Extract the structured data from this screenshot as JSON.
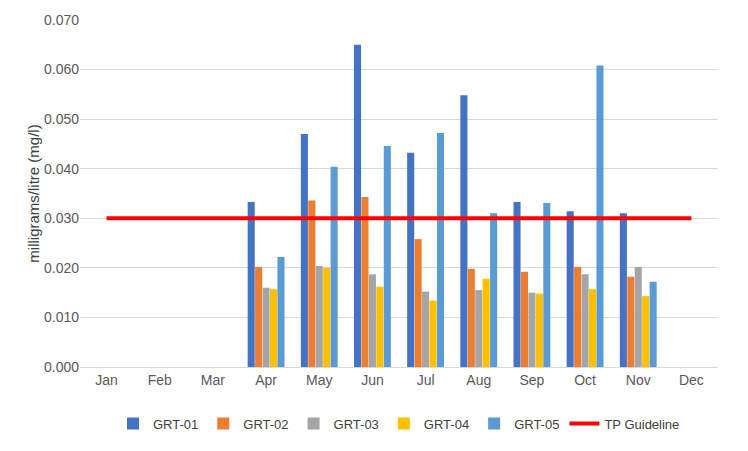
{
  "chart_data": {
    "type": "bar",
    "y_label": "milligrams/litre (mg/l)",
    "categories": [
      "Jan",
      "Feb",
      "Mar",
      "Apr",
      "May",
      "Jun",
      "Jul",
      "Aug",
      "Sep",
      "Oct",
      "Nov",
      "Dec"
    ],
    "series": [
      {
        "name": "GRT-01",
        "color": "#4472C4",
        "type": "bar",
        "values": [
          null,
          null,
          null,
          0.0333,
          0.047,
          0.065,
          0.0432,
          0.0548,
          0.0333,
          0.0314,
          0.031,
          null
        ]
      },
      {
        "name": "GRT-02",
        "color": "#ED7D31",
        "type": "bar",
        "values": [
          null,
          null,
          null,
          0.0202,
          0.0336,
          0.0343,
          0.0258,
          0.0198,
          0.0192,
          0.0202,
          0.0182,
          null
        ]
      },
      {
        "name": "GRT-03",
        "color": "#A5A5A5",
        "type": "bar",
        "values": [
          null,
          null,
          null,
          0.016,
          0.0204,
          0.0187,
          0.0152,
          0.0155,
          0.015,
          0.0187,
          0.0202,
          null
        ]
      },
      {
        "name": "GRT-04",
        "color": "#FFC000",
        "type": "bar",
        "values": [
          null,
          null,
          null,
          0.0157,
          0.02,
          0.0162,
          0.0134,
          0.0178,
          0.0148,
          0.0157,
          0.0143,
          null
        ]
      },
      {
        "name": "GRT-05",
        "color": "#5B9BD5",
        "type": "bar",
        "values": [
          null,
          null,
          null,
          0.0222,
          0.0404,
          0.0446,
          0.0472,
          0.031,
          0.0331,
          0.0608,
          0.0172,
          null
        ]
      },
      {
        "name": "TP Guideline",
        "color": "#FF0000",
        "type": "line",
        "values": [
          0.03,
          0.03,
          0.03,
          0.03,
          0.03,
          0.03,
          0.03,
          0.03,
          0.03,
          0.03,
          0.03,
          0.03
        ]
      }
    ],
    "ylim": [
      0,
      0.07
    ],
    "yticks": [
      {
        "value": 0,
        "label": "0.000"
      },
      {
        "value": 0.01,
        "label": "0.010"
      },
      {
        "value": 0.02,
        "label": "0.020"
      },
      {
        "value": 0.03,
        "label": "0.030"
      },
      {
        "value": 0.04,
        "label": "0.040"
      },
      {
        "value": 0.05,
        "label": "0.050"
      },
      {
        "value": 0.06,
        "label": "0.060"
      },
      {
        "value": 0.07,
        "label": "0.070"
      }
    ],
    "grid": true,
    "legend": "bottom"
  }
}
